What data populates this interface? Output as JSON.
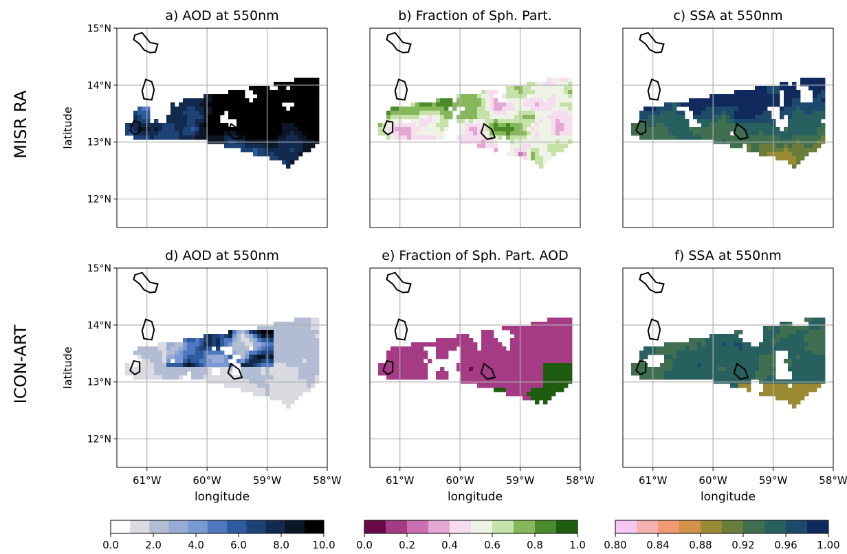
{
  "rows": [
    {
      "label": "MISR RA"
    },
    {
      "label": "ICON-ART"
    }
  ],
  "panels": [
    {
      "title": "a) AOD at 550nm"
    },
    {
      "title": "b) Fraction of Sph. Part."
    },
    {
      "title": "c) SSA at 550nm"
    },
    {
      "title": "d) AOD at 550nm"
    },
    {
      "title": "e) Fraction of Sph. Part. AOD"
    },
    {
      "title": "f) SSA at 550nm"
    }
  ],
  "axes": {
    "ylabel": "latitude",
    "xlabel": "longitude",
    "xticks": [
      "61°W",
      "60°W",
      "59°W",
      "58°W"
    ],
    "yticks": [
      "15°N",
      "14°N",
      "13°N",
      "12°N"
    ],
    "grid": true
  },
  "colorbars": [
    {
      "name": "AOD at 550nm",
      "ticks": [
        "0.0",
        "2.0",
        "4.0",
        "6.0",
        "8.0",
        "10.0"
      ],
      "colors": [
        "#ffffff",
        "#d9dbe0",
        "#b2bcd2",
        "#96acd5",
        "#7899d2",
        "#4f78c0",
        "#2e5a9f",
        "#1d4275",
        "#112a4d",
        "#0b1626",
        "#000000"
      ]
    },
    {
      "name": "Fraction of Sph. Part.",
      "ticks": [
        "0.0",
        "0.2",
        "0.4",
        "0.6",
        "0.8",
        "1.0"
      ],
      "colors": [
        "#6a0a48",
        "#a63b85",
        "#cc6fb0",
        "#e5a8d3",
        "#f5dcee",
        "#eef3e5",
        "#c5e2a8",
        "#86b75b",
        "#4a8a2a",
        "#1e5c0f"
      ]
    },
    {
      "name": "SSA at 550nm",
      "ticks": [
        "0.80",
        "0.84",
        "0.88",
        "0.92",
        "0.96",
        "1.00"
      ],
      "colors": [
        "#f6c7f4",
        "#f7b1b1",
        "#f09a73",
        "#d4914a",
        "#9a8a34",
        "#6a7d3b",
        "#3f6e50",
        "#28605f",
        "#1d4a6a",
        "#102a5e"
      ]
    }
  ],
  "chart_data": {
    "type": "heatmap",
    "x_range_lon": [
      -61.5,
      -58.0
    ],
    "y_range_lat": [
      11.5,
      15.0
    ],
    "islands": [
      "St. Lucia",
      "St. Vincent",
      "Martinique",
      "Barbados"
    ],
    "panels": [
      {
        "id": "a",
        "variable": "AOD at 550nm",
        "source": "MISR RA"
      },
      {
        "id": "b",
        "variable": "Fraction of Sph. Part.",
        "source": "MISR RA"
      },
      {
        "id": "c",
        "variable": "SSA at 550nm",
        "source": "MISR RA"
      },
      {
        "id": "d",
        "variable": "AOD at 550nm",
        "source": "ICON-ART"
      },
      {
        "id": "e",
        "variable": "Fraction of Sph. Part. AOD",
        "source": "ICON-ART"
      },
      {
        "id": "f",
        "variable": "SSA at 550nm",
        "source": "ICON-ART"
      }
    ]
  }
}
